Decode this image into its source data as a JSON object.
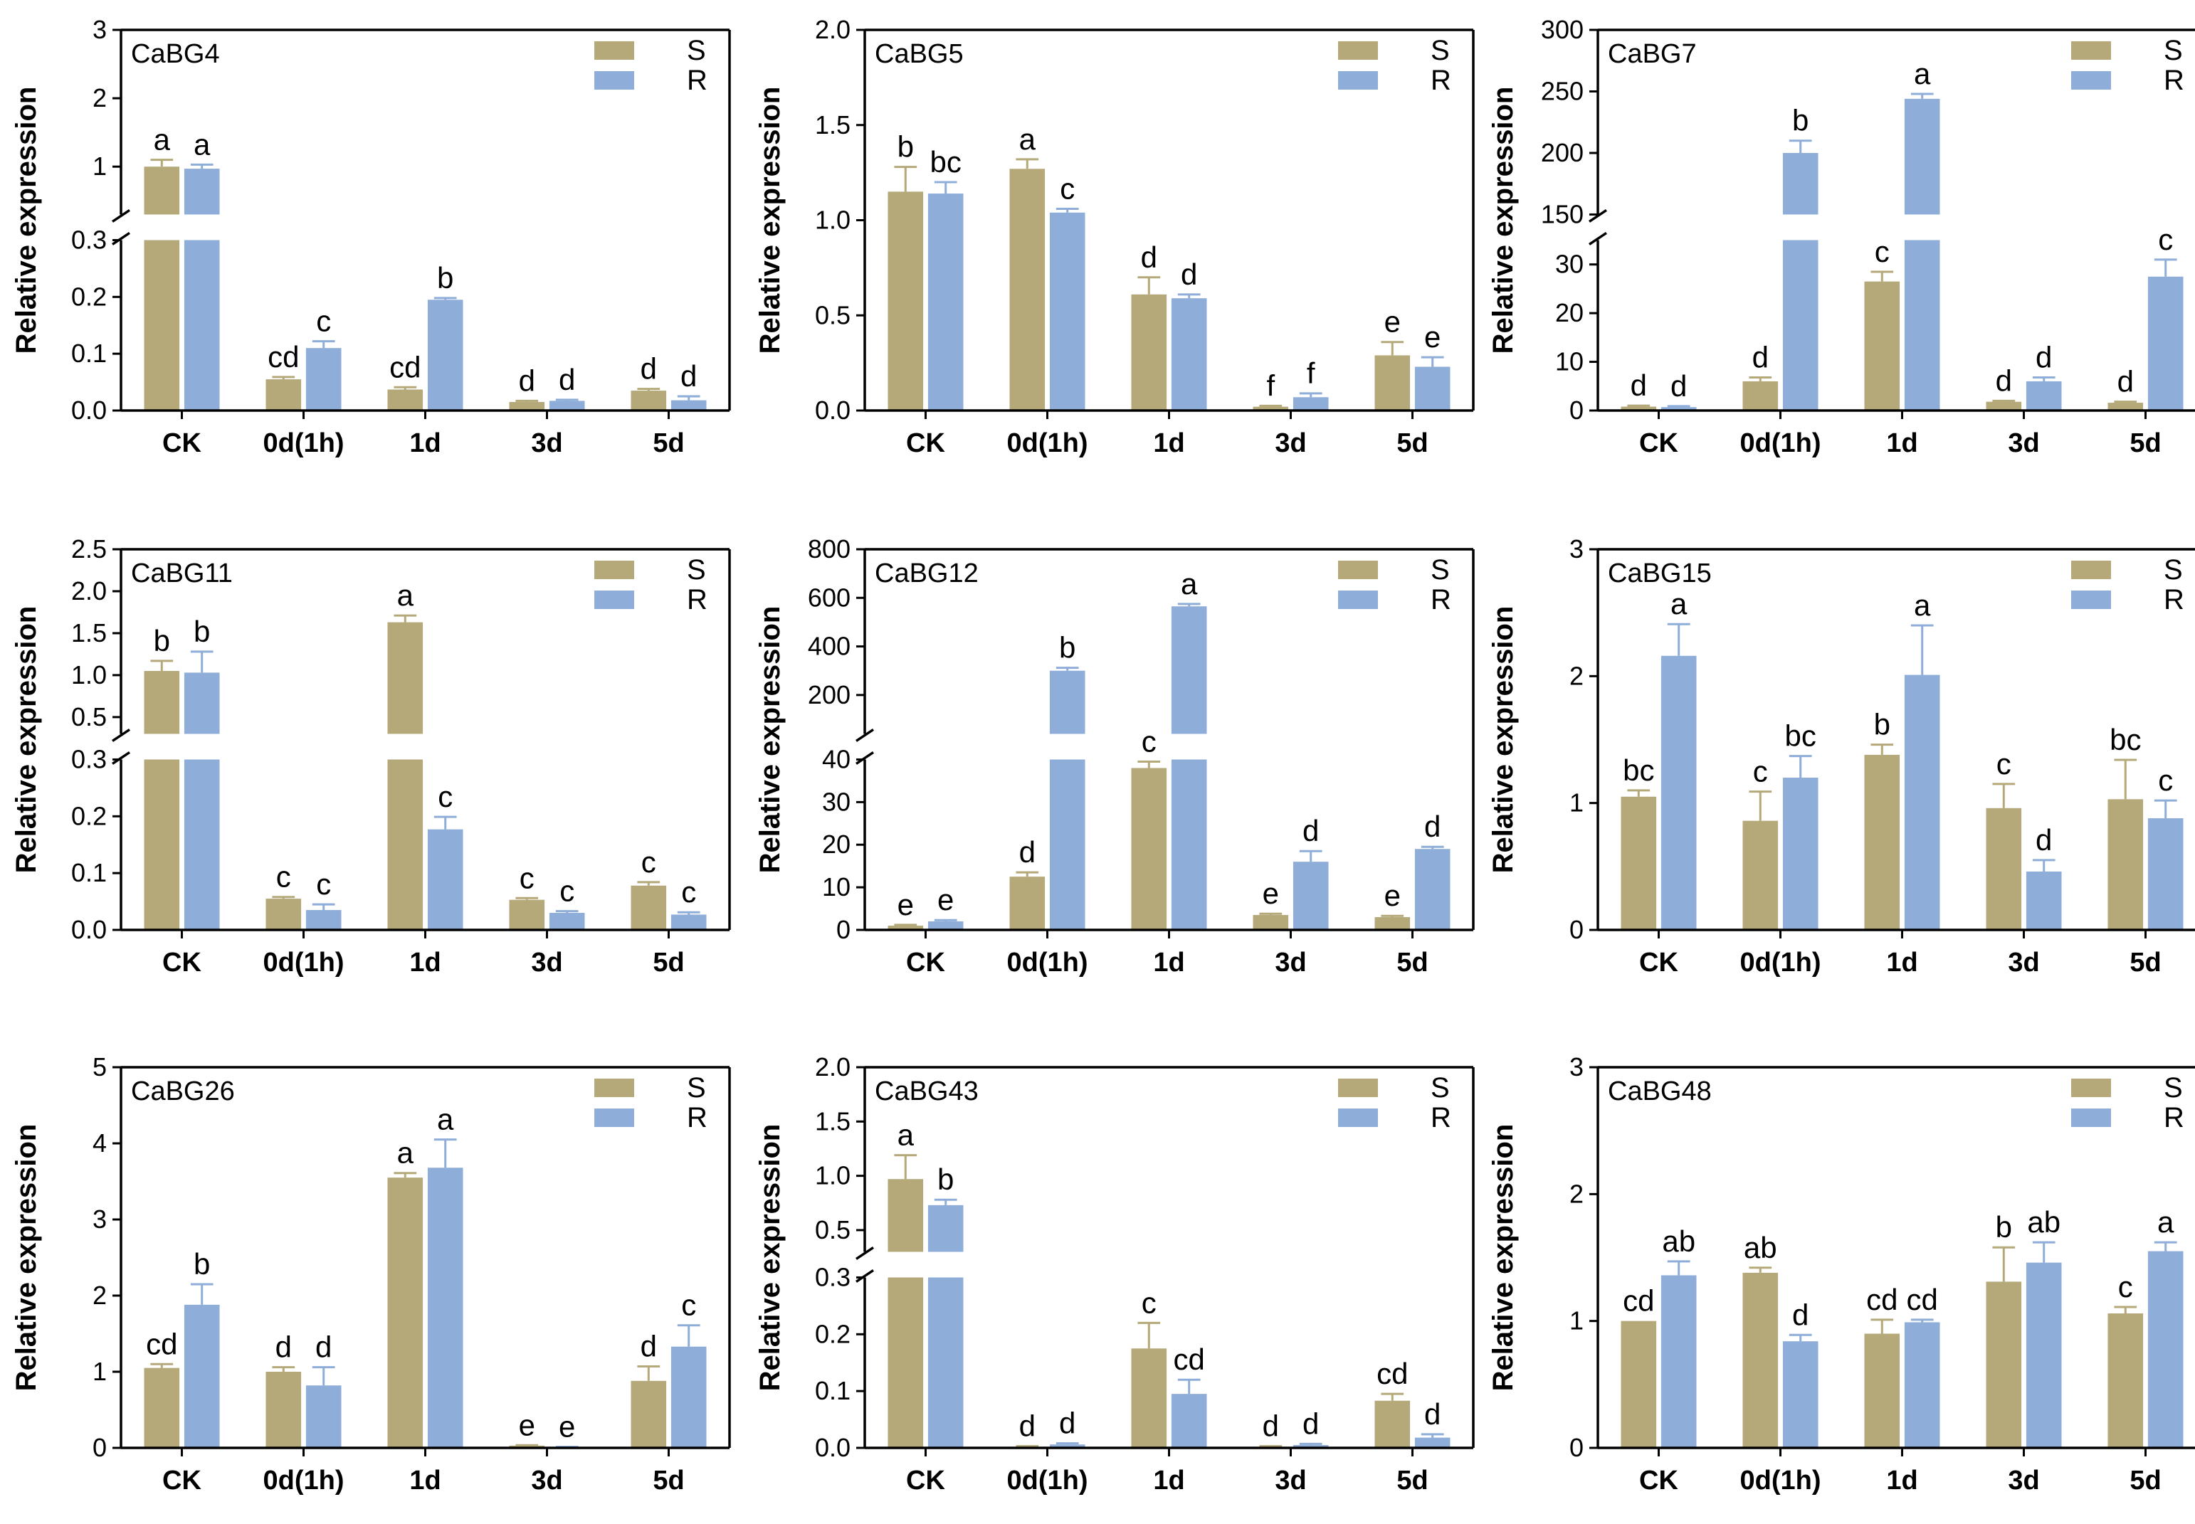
{
  "colors": {
    "S": "#b5a97a",
    "R": "#8eadd8",
    "axis": "#000000"
  },
  "legend": [
    "S",
    "R"
  ],
  "chart_data": [
    {
      "type": "bar",
      "title": "CaBG4",
      "ylabel": "Relative expression",
      "categories": [
        "CK",
        "0d(1h)",
        "1d",
        "3d",
        "5d"
      ],
      "axis": {
        "broken": true,
        "lower": {
          "range": [
            0,
            0.3
          ],
          "ticks": [
            "0.0",
            "0.1",
            "0.2",
            "0.3"
          ]
        },
        "upper": {
          "range": [
            0.3,
            3
          ],
          "ticks": [
            "1",
            "2",
            "3"
          ]
        }
      },
      "series": [
        {
          "name": "S",
          "values": [
            1.0,
            0.055,
            0.037,
            0.015,
            0.035
          ],
          "errors": [
            0.1,
            0.004,
            0.004,
            0.002,
            0.003
          ],
          "labels": [
            "a",
            "cd",
            "cd",
            "d",
            "d"
          ]
        },
        {
          "name": "R",
          "values": [
            0.97,
            0.11,
            0.195,
            0.017,
            0.018
          ],
          "errors": [
            0.06,
            0.012,
            0.003,
            0.002,
            0.007
          ],
          "labels": [
            "a",
            "c",
            "b",
            "d",
            "d"
          ]
        }
      ]
    },
    {
      "type": "bar",
      "title": "CaBG5",
      "ylabel": "Relative expression",
      "categories": [
        "CK",
        "0d(1h)",
        "1d",
        "3d",
        "5d"
      ],
      "axis": {
        "broken": false,
        "range": [
          0,
          2.0
        ],
        "ticks": [
          "0.0",
          "0.5",
          "1.0",
          "1.5",
          "2.0"
        ]
      },
      "series": [
        {
          "name": "S",
          "values": [
            1.15,
            1.27,
            0.61,
            0.02,
            0.29
          ],
          "errors": [
            0.13,
            0.05,
            0.09,
            0.005,
            0.07
          ],
          "labels": [
            "b",
            "a",
            "d",
            "f",
            "e"
          ]
        },
        {
          "name": "R",
          "values": [
            1.14,
            1.04,
            0.59,
            0.07,
            0.23
          ],
          "errors": [
            0.06,
            0.02,
            0.02,
            0.02,
            0.05
          ],
          "labels": [
            "bc",
            "c",
            "d",
            "f",
            "e"
          ]
        }
      ]
    },
    {
      "type": "bar",
      "title": "CaBG7",
      "ylabel": "Relative expression",
      "categories": [
        "CK",
        "0d(1h)",
        "1d",
        "3d",
        "5d"
      ],
      "axis": {
        "broken": true,
        "lower": {
          "range": [
            0,
            35
          ],
          "ticks": [
            "0",
            "10",
            "20",
            "30"
          ]
        },
        "upper": {
          "range": [
            150,
            300
          ],
          "ticks": [
            "150",
            "200",
            "250",
            "300"
          ]
        }
      },
      "series": [
        {
          "name": "S",
          "values": [
            0.8,
            6.0,
            26.5,
            1.8,
            1.6
          ],
          "errors": [
            0.2,
            0.8,
            2.0,
            0.2,
            0.2
          ],
          "labels": [
            "d",
            "d",
            "c",
            "d",
            "d"
          ]
        },
        {
          "name": "R",
          "values": [
            0.7,
            200,
            244,
            6.0,
            27.5
          ],
          "errors": [
            0.2,
            10,
            4,
            0.8,
            3.5
          ],
          "labels": [
            "d",
            "b",
            "a",
            "d",
            "c"
          ]
        }
      ]
    },
    {
      "type": "bar",
      "title": "CaBG11",
      "ylabel": "Relative expression",
      "categories": [
        "CK",
        "0d(1h)",
        "1d",
        "3d",
        "5d"
      ],
      "axis": {
        "broken": true,
        "lower": {
          "range": [
            0,
            0.3
          ],
          "ticks": [
            "0.0",
            "0.1",
            "0.2",
            "0.3"
          ]
        },
        "upper": {
          "range": [
            0.3,
            2.5
          ],
          "ticks": [
            "0.5",
            "1.0",
            "1.5",
            "2.0",
            "2.5"
          ]
        }
      },
      "series": [
        {
          "name": "S",
          "values": [
            1.05,
            0.055,
            1.63,
            0.053,
            0.078
          ],
          "errors": [
            0.12,
            0.003,
            0.08,
            0.003,
            0.006
          ],
          "labels": [
            "b",
            "c",
            "a",
            "c",
            "c"
          ]
        },
        {
          "name": "R",
          "values": [
            1.03,
            0.035,
            0.177,
            0.03,
            0.027
          ],
          "errors": [
            0.25,
            0.01,
            0.022,
            0.003,
            0.004
          ],
          "labels": [
            "b",
            "c",
            "c",
            "c",
            "c"
          ]
        }
      ]
    },
    {
      "type": "bar",
      "title": "CaBG12",
      "ylabel": "Relative expression",
      "categories": [
        "CK",
        "0d(1h)",
        "1d",
        "3d",
        "5d"
      ],
      "axis": {
        "broken": true,
        "lower": {
          "range": [
            0,
            40
          ],
          "ticks": [
            "0",
            "10",
            "20",
            "30",
            "40"
          ]
        },
        "upper": {
          "range": [
            40,
            800
          ],
          "ticks": [
            "200",
            "400",
            "600",
            "800"
          ]
        }
      },
      "series": [
        {
          "name": "S",
          "values": [
            1.0,
            12.5,
            38,
            3.5,
            3.0
          ],
          "errors": [
            0.2,
            1.0,
            1.5,
            0.3,
            0.3
          ],
          "labels": [
            "e",
            "d",
            "c",
            "e",
            "e"
          ]
        },
        {
          "name": "R",
          "values": [
            2.0,
            300,
            565,
            16,
            19
          ],
          "errors": [
            0.3,
            12,
            10,
            2.5,
            0.5
          ],
          "labels": [
            "e",
            "b",
            "a",
            "d",
            "d"
          ]
        }
      ]
    },
    {
      "type": "bar",
      "title": "CaBG15",
      "ylabel": "Relative expression",
      "categories": [
        "CK",
        "0d(1h)",
        "1d",
        "3d",
        "5d"
      ],
      "axis": {
        "broken": false,
        "range": [
          0,
          3
        ],
        "ticks": [
          "0",
          "1",
          "2",
          "3"
        ]
      },
      "series": [
        {
          "name": "S",
          "values": [
            1.05,
            0.86,
            1.38,
            0.96,
            1.03
          ],
          "errors": [
            0.05,
            0.23,
            0.08,
            0.19,
            0.31
          ],
          "labels": [
            "bc",
            "c",
            "b",
            "c",
            "bc"
          ]
        },
        {
          "name": "R",
          "values": [
            2.16,
            1.2,
            2.01,
            0.46,
            0.88
          ],
          "errors": [
            0.25,
            0.17,
            0.39,
            0.09,
            0.14
          ],
          "labels": [
            "a",
            "bc",
            "a",
            "d",
            "c"
          ]
        }
      ]
    },
    {
      "type": "bar",
      "title": "CaBG26",
      "ylabel": "Relative expression",
      "categories": [
        "CK",
        "0d(1h)",
        "1d",
        "3d",
        "5d"
      ],
      "axis": {
        "broken": false,
        "range": [
          0,
          5
        ],
        "ticks": [
          "0",
          "1",
          "2",
          "3",
          "4",
          "5"
        ]
      },
      "series": [
        {
          "name": "S",
          "values": [
            1.05,
            1.0,
            3.55,
            0.03,
            0.88
          ],
          "errors": [
            0.05,
            0.06,
            0.06,
            0.005,
            0.19
          ],
          "labels": [
            "cd",
            "d",
            "a",
            "e",
            "d"
          ]
        },
        {
          "name": "R",
          "values": [
            1.88,
            0.82,
            3.68,
            0.01,
            1.33
          ],
          "errors": [
            0.27,
            0.24,
            0.37,
            0.003,
            0.28
          ],
          "labels": [
            "b",
            "d",
            "a",
            "e",
            "c"
          ]
        }
      ]
    },
    {
      "type": "bar",
      "title": "CaBG43",
      "ylabel": "Relative expression",
      "categories": [
        "CK",
        "0d(1h)",
        "1d",
        "3d",
        "5d"
      ],
      "axis": {
        "broken": true,
        "lower": {
          "range": [
            0,
            0.3
          ],
          "ticks": [
            "0.0",
            "0.1",
            "0.2",
            "0.3"
          ]
        },
        "upper": {
          "range": [
            0.3,
            2.0
          ],
          "ticks": [
            "0.5",
            "1.0",
            "1.5",
            "2.0"
          ]
        }
      },
      "series": [
        {
          "name": "S",
          "values": [
            0.97,
            0.002,
            0.175,
            0.002,
            0.083
          ],
          "errors": [
            0.22,
            0.001,
            0.045,
            0.001,
            0.012
          ],
          "labels": [
            "a",
            "d",
            "c",
            "d",
            "cd"
          ]
        },
        {
          "name": "R",
          "values": [
            0.73,
            0.006,
            0.095,
            0.005,
            0.018
          ],
          "errors": [
            0.05,
            0.002,
            0.025,
            0.002,
            0.006
          ],
          "labels": [
            "b",
            "d",
            "cd",
            "d",
            "d"
          ]
        }
      ]
    },
    {
      "type": "bar",
      "title": "CaBG48",
      "ylabel": "Relative expression",
      "categories": [
        "CK",
        "0d(1h)",
        "1d",
        "3d",
        "5d"
      ],
      "axis": {
        "broken": false,
        "range": [
          0,
          3
        ],
        "ticks": [
          "0",
          "1",
          "2",
          "3"
        ]
      },
      "series": [
        {
          "name": "S",
          "values": [
            1.0,
            1.38,
            0.9,
            1.31,
            1.06
          ],
          "errors": [
            0.0,
            0.04,
            0.11,
            0.27,
            0.05
          ],
          "labels": [
            "cd",
            "ab",
            "cd",
            "b",
            "c"
          ]
        },
        {
          "name": "R",
          "values": [
            1.36,
            0.84,
            0.99,
            1.46,
            1.55
          ],
          "errors": [
            0.11,
            0.05,
            0.02,
            0.16,
            0.07
          ],
          "labels": [
            "ab",
            "d",
            "cd",
            "ab",
            "a"
          ]
        }
      ]
    }
  ]
}
